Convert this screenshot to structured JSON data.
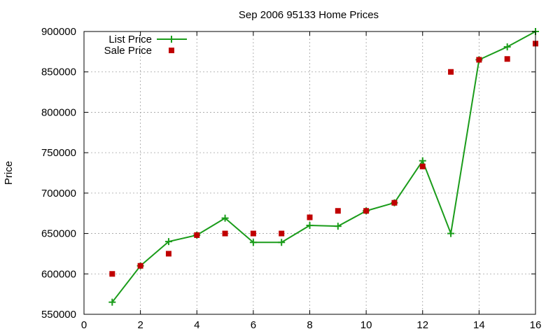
{
  "chart_data": {
    "type": "line",
    "title": "Sep 2006 95133 Home Prices",
    "xlabel": "",
    "ylabel": "Price",
    "xlim": [
      0,
      16
    ],
    "ylim": [
      550000,
      900000
    ],
    "xticks": [
      "0",
      "2",
      "4",
      "6",
      "8",
      "10",
      "12",
      "14",
      "16"
    ],
    "yticks": [
      "550000",
      "600000",
      "650000",
      "700000",
      "750000",
      "800000",
      "850000",
      "900000"
    ],
    "grid": true,
    "legend_position": "top-left",
    "series": [
      {
        "name": "List Price",
        "style": "linespoints",
        "marker": "plus",
        "color": "#1a9c1a",
        "x": [
          1,
          2,
          3,
          4,
          5,
          6,
          7,
          8,
          9,
          10,
          11,
          12,
          13,
          14,
          15,
          16
        ],
        "y": [
          565000,
          610000,
          640000,
          648000,
          669000,
          639000,
          639000,
          660000,
          659000,
          678000,
          688000,
          740000,
          650000,
          865000,
          881000,
          900000
        ]
      },
      {
        "name": "Sale Price",
        "style": "points",
        "marker": "square",
        "color": "#c00000",
        "x": [
          1,
          2,
          3,
          4,
          5,
          6,
          7,
          8,
          9,
          10,
          11,
          12,
          13,
          14,
          15,
          16
        ],
        "y": [
          600000,
          610000,
          625000,
          648000,
          650000,
          650000,
          650000,
          670000,
          678000,
          678000,
          688000,
          733000,
          850000,
          865000,
          866000,
          885000
        ]
      }
    ]
  }
}
